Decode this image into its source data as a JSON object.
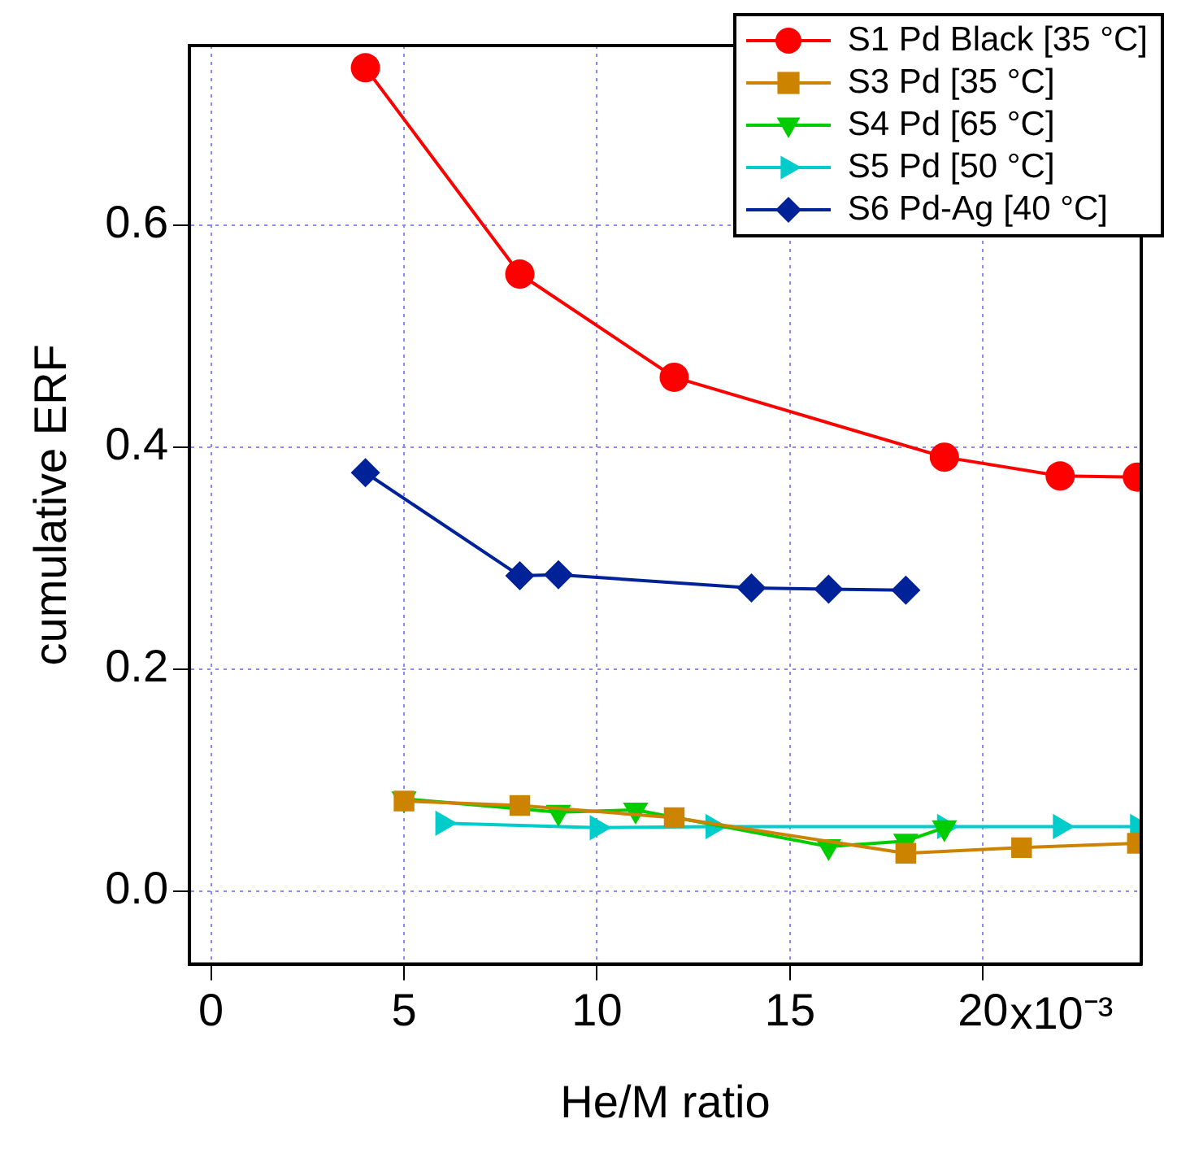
{
  "chart_data": {
    "type": "line",
    "xlabel": "He/M ratio",
    "ylabel": "cumulative ERF",
    "xlim": [
      -0.56,
      24.1
    ],
    "annotations": [
      "x10⁻³"
    ],
    "ylim": [
      -0.066,
      0.762
    ],
    "xticks": [
      0,
      5,
      10,
      15,
      20
    ],
    "yticks": [
      {
        "value": 0,
        "label": "0.0"
      },
      {
        "value": 0.2,
        "label": "0.2"
      },
      {
        "value": 0.4,
        "label": "0.4"
      },
      {
        "value": 0.6,
        "label": "0.6"
      }
    ],
    "grid": true,
    "legend": "top right",
    "line_style": "solid",
    "series": [
      {
        "name": "S1 Pd Black [35 °C]",
        "color": "#ff0000",
        "marker": "circle",
        "x": [
          4,
          8,
          12,
          19,
          22,
          24
        ],
        "values": [
          0.742,
          0.556,
          0.463,
          0.391,
          0.374,
          0.373
        ]
      },
      {
        "name": "S3 Pd [35 °C]",
        "color": "#cc8400",
        "marker": "square",
        "x": [
          5,
          8,
          12,
          18,
          21,
          24
        ],
        "values": [
          0.081,
          0.077,
          0.066,
          0.034,
          0.039,
          0.043
        ]
      },
      {
        "name": "S4 Pd [65 °C]",
        "color": "#00cc00",
        "marker": "triangle-down",
        "x": [
          5,
          9,
          11,
          16,
          18,
          19
        ],
        "values": [
          0.083,
          0.071,
          0.073,
          0.04,
          0.045,
          0.057
        ]
      },
      {
        "name": "S5 Pd [50 °C]",
        "color": "#00cccc",
        "marker": "triangle-right",
        "x": [
          6,
          10,
          13,
          19,
          22,
          24
        ],
        "values": [
          0.061,
          0.057,
          0.058,
          0.058,
          0.058,
          0.058
        ]
      },
      {
        "name": "S6 Pd-Ag [40 °C]",
        "color": "#002299",
        "marker": "diamond",
        "x": [
          4,
          8,
          9,
          14,
          16,
          18
        ],
        "values": [
          0.377,
          0.284,
          0.285,
          0.273,
          0.272,
          0.271
        ]
      }
    ]
  }
}
